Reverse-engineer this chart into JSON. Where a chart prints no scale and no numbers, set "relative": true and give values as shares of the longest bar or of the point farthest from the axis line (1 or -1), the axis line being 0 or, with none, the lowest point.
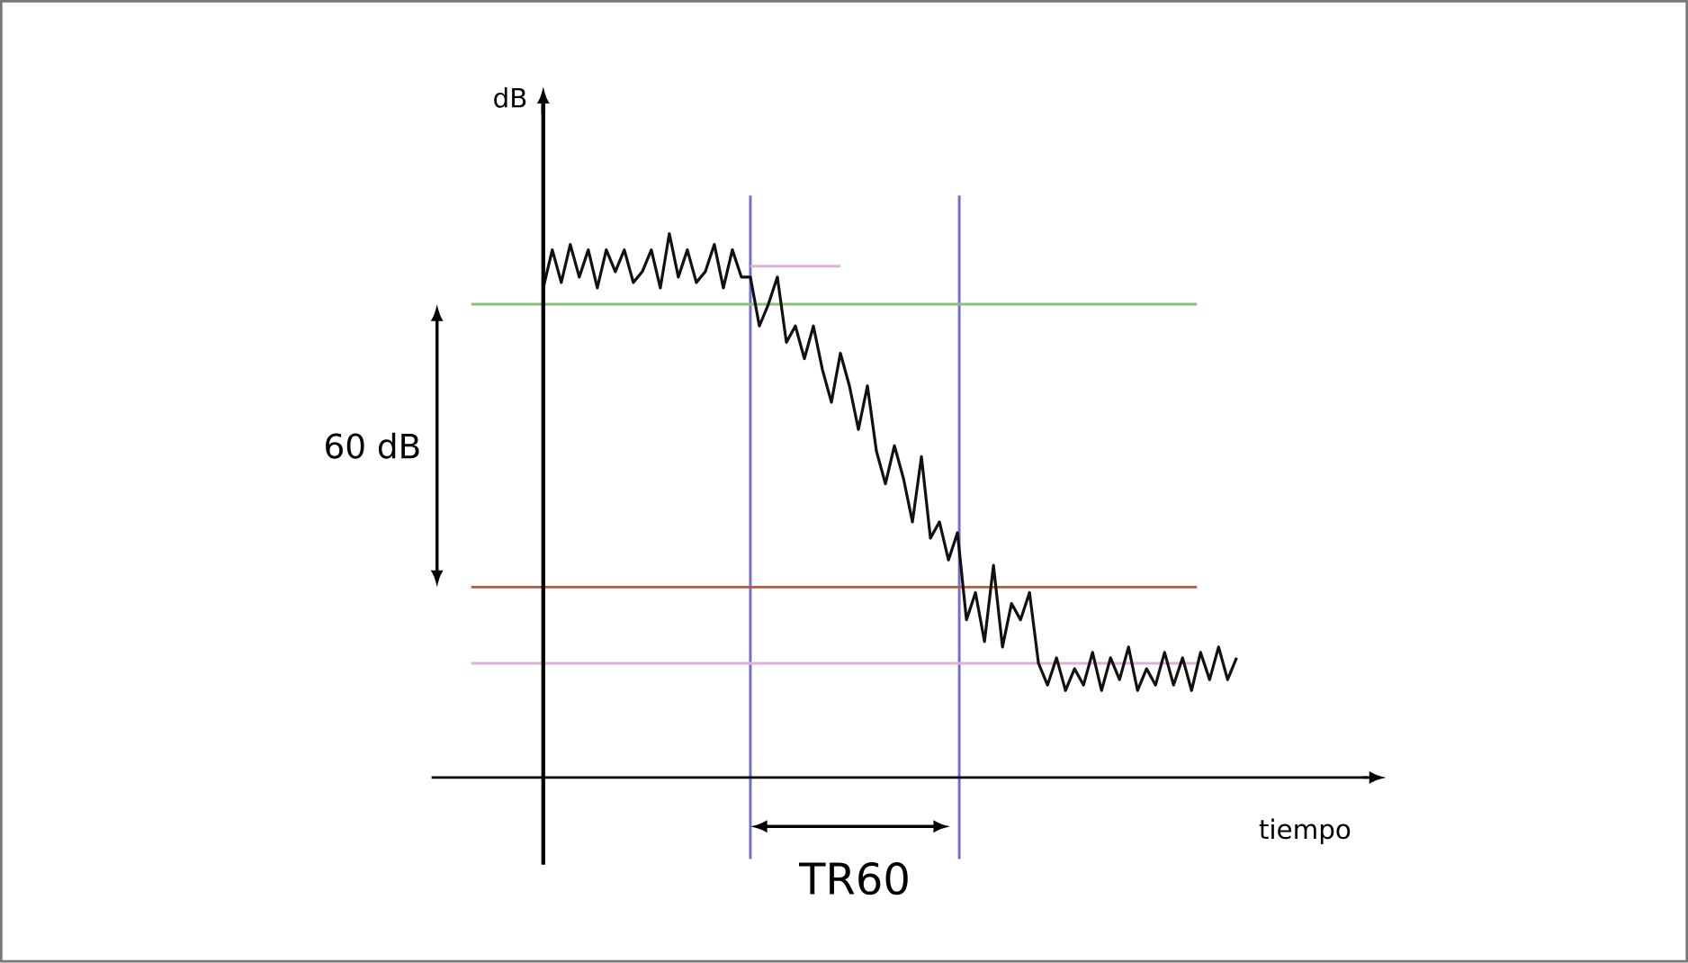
{
  "chart_data": {
    "type": "line",
    "relative": true,
    "xlabel": "tiempo",
    "annotations": [
      "60 dB",
      "TR60",
      "dB"
    ],
    "categories": [
      null,
      null,
      null,
      null,
      null,
      null,
      null,
      null,
      null,
      null,
      null,
      null,
      null,
      null,
      null,
      null,
      null,
      null,
      null,
      null,
      null,
      null,
      null,
      null,
      null,
      null,
      null,
      null,
      null,
      null,
      null,
      null,
      null,
      null,
      null,
      null,
      null,
      null,
      null,
      null,
      null,
      null,
      null,
      null,
      null,
      null,
      null,
      null,
      null,
      null,
      null,
      null,
      null,
      null,
      null,
      null,
      null,
      null,
      null,
      null,
      null,
      null,
      null,
      null,
      null,
      null,
      null,
      null,
      null,
      null,
      null,
      null,
      null,
      null,
      null,
      null,
      null,
      null
    ],
    "series": [
      {
        "color": "#111111",
        "values": [
          0.9,
          0.97,
          0.91,
          0.98,
          0.92,
          0.97,
          0.9,
          0.97,
          0.93,
          0.97,
          0.91,
          0.93,
          0.97,
          0.9,
          1.0,
          0.92,
          0.97,
          0.91,
          0.93,
          0.98,
          0.9,
          0.97,
          0.92,
          0.92,
          0.83,
          0.87,
          0.92,
          0.8,
          0.83,
          0.77,
          0.83,
          0.75,
          0.69,
          0.78,
          0.72,
          0.64,
          0.72,
          0.6,
          0.54,
          0.61,
          0.55,
          0.47,
          0.59,
          0.44,
          0.47,
          0.4,
          0.45,
          0.29,
          0.34,
          0.25,
          0.39,
          0.24,
          0.32,
          0.29,
          0.34,
          0.21,
          0.17,
          0.22,
          0.16,
          0.2,
          0.17,
          0.23,
          0.16,
          0.22,
          0.18,
          0.24,
          0.16,
          0.2,
          0.17,
          0.23,
          0.17,
          0.22,
          0.16,
          0.23,
          0.18,
          0.24,
          0.18,
          0.22
        ]
      },
      {
        "color": "#e0b0d8",
        "values": [
          null,
          null,
          null,
          null,
          null,
          null,
          null,
          null,
          null,
          null,
          null,
          null,
          null,
          null,
          null,
          null,
          null,
          null,
          null,
          null,
          null,
          null,
          null,
          0.94,
          null,
          null,
          null,
          null,
          null,
          null,
          null,
          null,
          null,
          0.94,
          null,
          null,
          null,
          null,
          null,
          null,
          null,
          null,
          null,
          null,
          null,
          null,
          null,
          null,
          null,
          null,
          null,
          null,
          null,
          null,
          null,
          null,
          null,
          null,
          null,
          null,
          null,
          null,
          null,
          null,
          null,
          null,
          null,
          null,
          null,
          null,
          null,
          null,
          null,
          null,
          null,
          null,
          null,
          null
        ]
      }
    ],
    "ref_lines": [
      {
        "axis": "y",
        "value": 0.87,
        "color": "#8cc07a"
      },
      {
        "axis": "y",
        "value": 0.35,
        "color": "#c0583a"
      },
      {
        "axis": "y",
        "value": 0.21,
        "color": "#e0b0d8"
      }
    ]
  }
}
